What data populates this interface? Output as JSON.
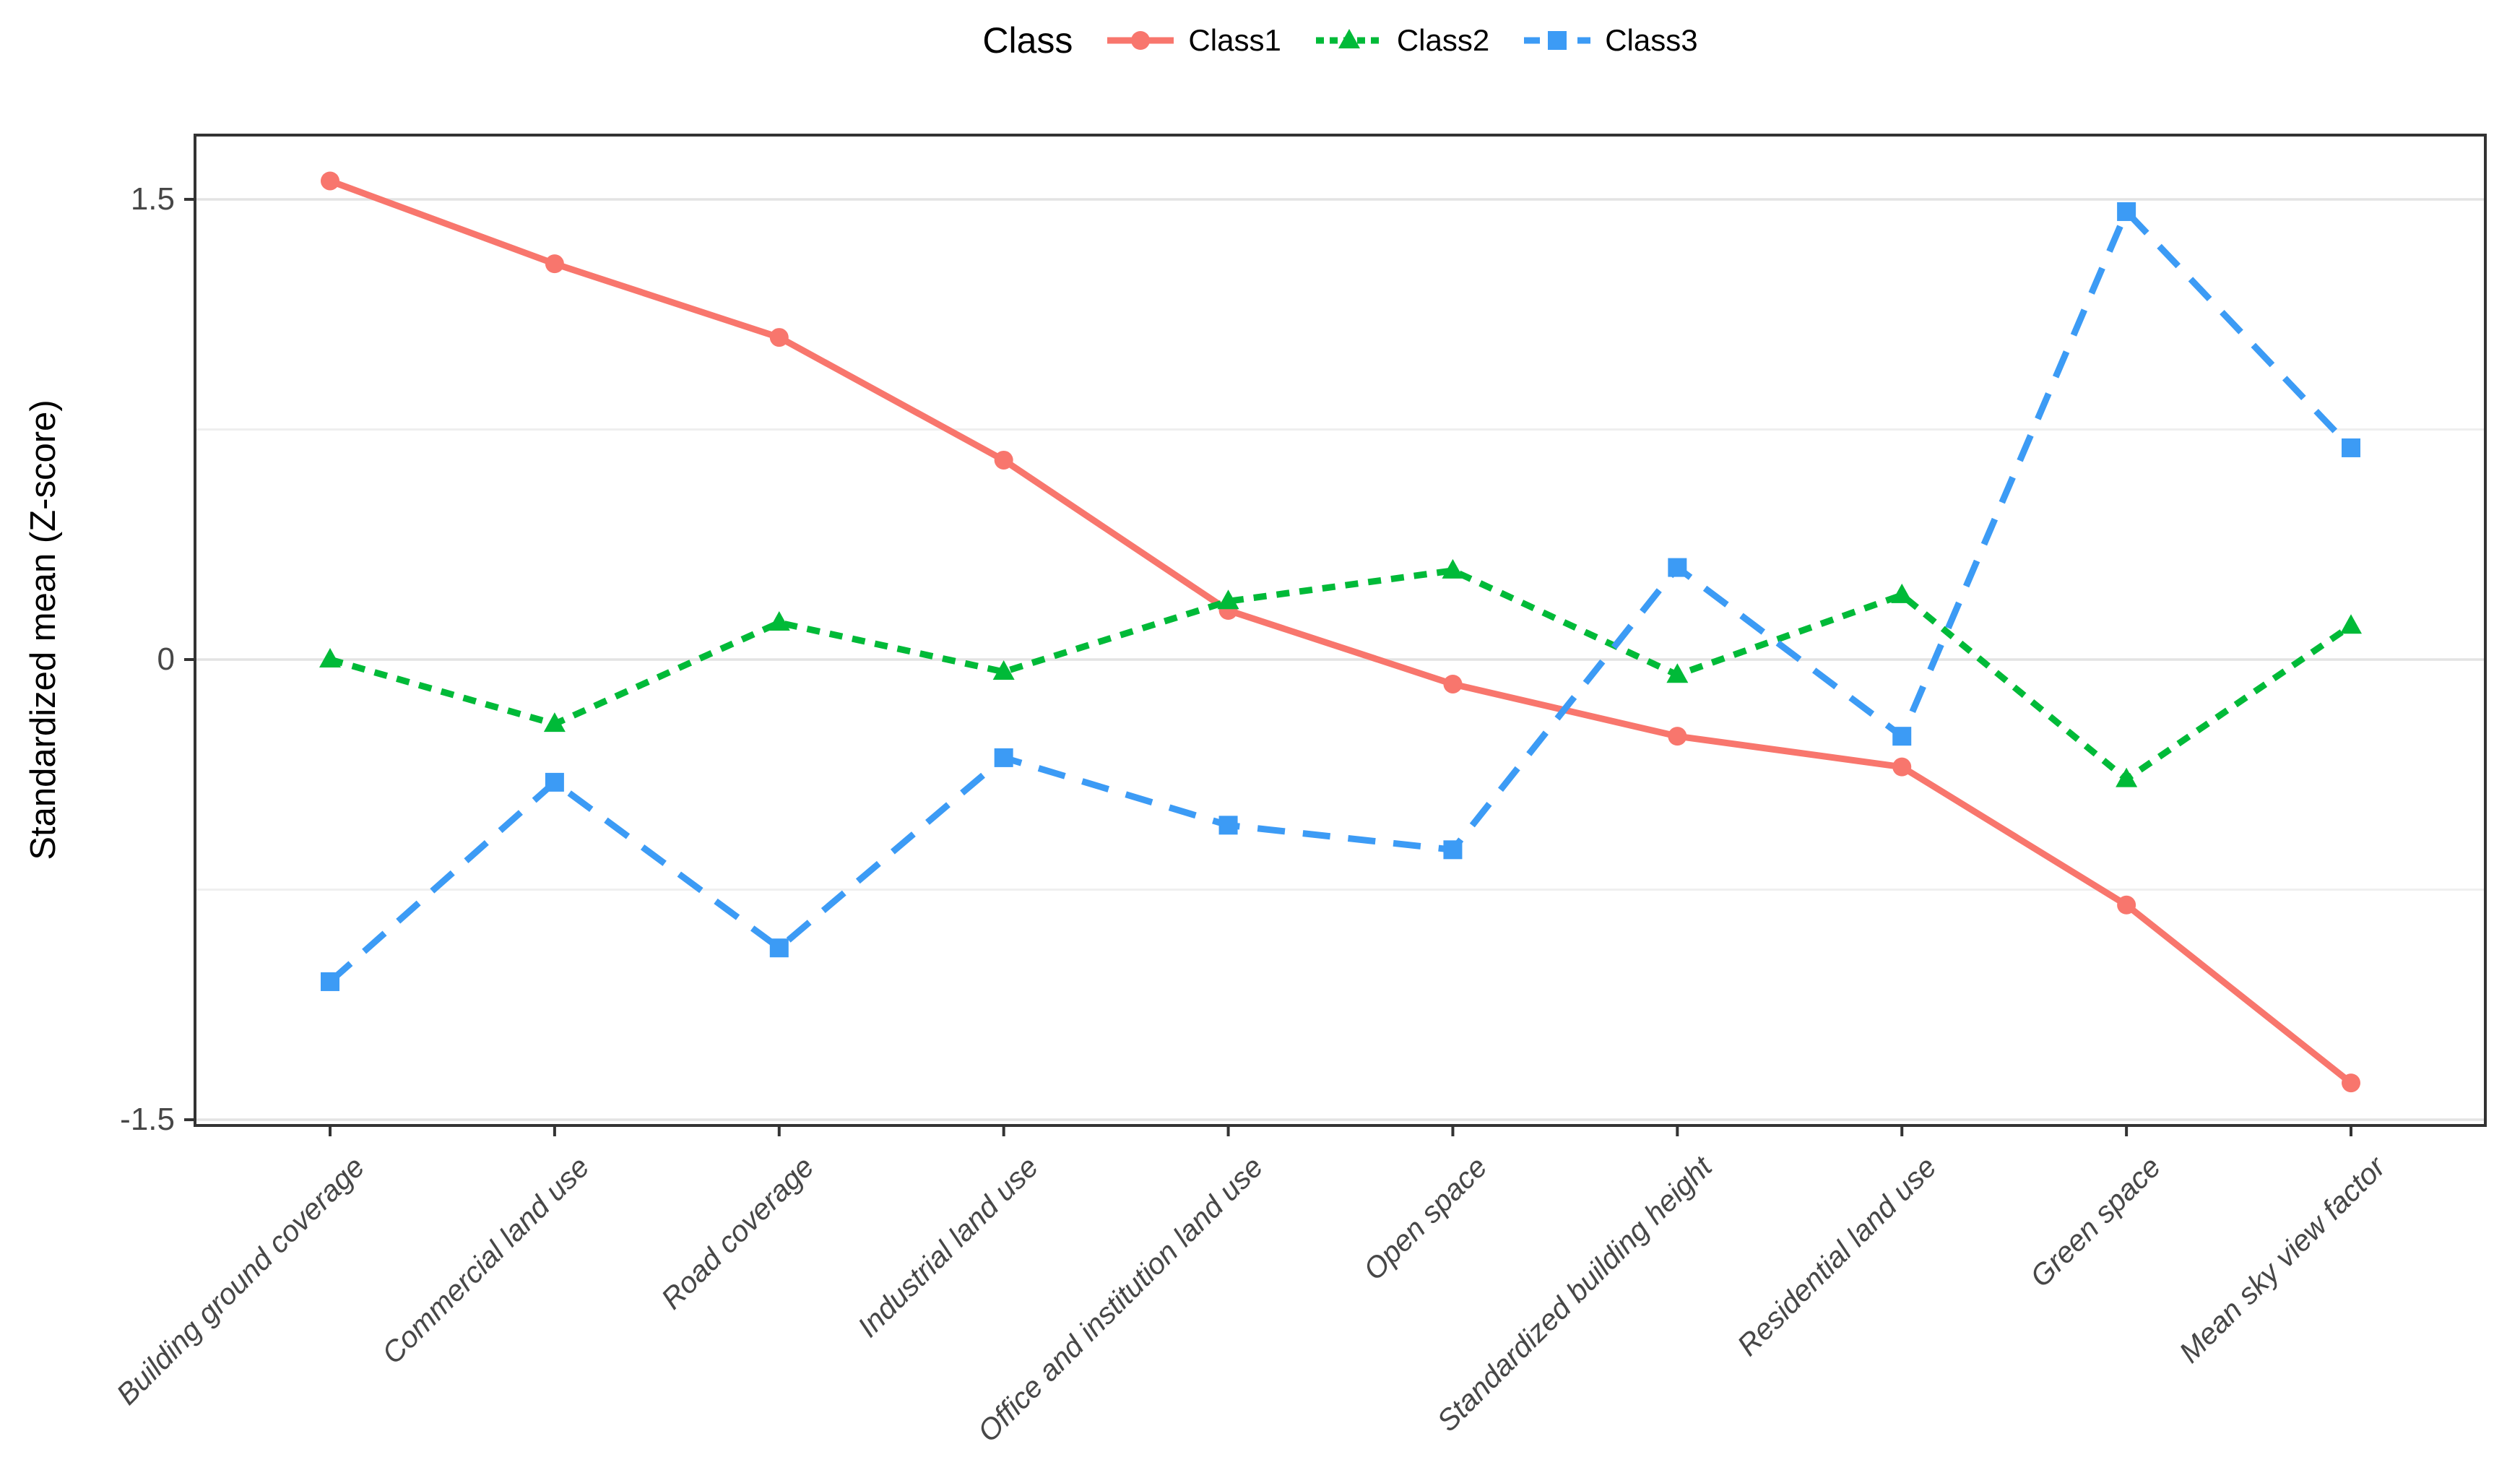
{
  "chart_data": {
    "type": "line",
    "title": "",
    "xlabel": "",
    "ylabel": "Standardized mean (Z-score)",
    "legend_title": "Class",
    "legend_position": "top",
    "grid": true,
    "ylim": [
      -1.53,
      1.71
    ],
    "y_ticks": [
      {
        "value": 1.5,
        "label": "1.5"
      },
      {
        "value": 0,
        "label": "0"
      },
      {
        "value": -1.5,
        "label": "-1.5"
      }
    ],
    "y_minor_ticks": [
      0.75,
      -0.75
    ],
    "categories": [
      "Building ground coverage",
      "Commercial land use",
      "Road coverage",
      "Industrial land use",
      "Office and institution land use",
      "Open space",
      "Standardized building height",
      "Residential land use",
      "Green space",
      "Mean sky view factor"
    ],
    "series": [
      {
        "name": "Class1",
        "color": "#F8766D",
        "line_style": "solid",
        "marker": "circle",
        "values": [
          1.56,
          1.29,
          1.05,
          0.65,
          0.16,
          -0.08,
          -0.25,
          -0.35,
          -0.8,
          -1.38
        ]
      },
      {
        "name": "Class2",
        "color": "#00BA38",
        "line_style": "dashed-short",
        "marker": "triangle",
        "values": [
          0,
          -0.21,
          0.12,
          -0.04,
          0.19,
          0.29,
          -0.05,
          0.21,
          -0.39,
          0.11
        ]
      },
      {
        "name": "Class3",
        "color": "#3C9BF5",
        "line_style": "dashed-long",
        "marker": "square",
        "values": [
          -1.05,
          -0.4,
          -0.94,
          -0.32,
          -0.54,
          -0.62,
          0.3,
          -0.25,
          1.46,
          0.69
        ]
      }
    ],
    "panel_border_color": "#333333",
    "major_grid_color": "#E3E3E3",
    "minor_grid_color": "#EFEFEF",
    "axis_text_color": "#474747"
  }
}
